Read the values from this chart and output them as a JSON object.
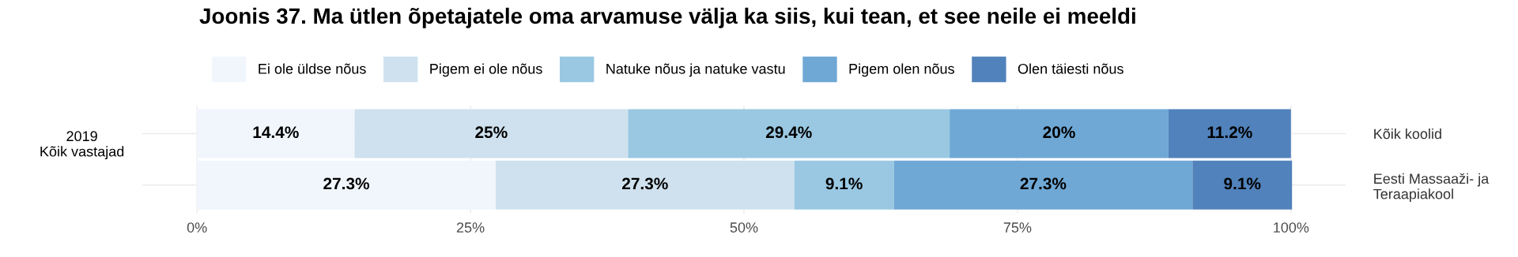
{
  "chart_data": {
    "type": "bar",
    "orientation": "horizontal",
    "stacked": true,
    "title": "Joonis 37. Ma ütlen õpetajatele oma arvamuse välja ka siis, kui tean, et see neile ei meeldi",
    "ylabel": "2019\nKõik vastajad",
    "categories": [
      "Kõik koolid",
      "Eesti Massaaži- ja\nTeraapiakool"
    ],
    "series": [
      {
        "name": "Ei ole üldse nõus",
        "color": "#f1f6fd",
        "values": [
          14.4,
          27.3
        ],
        "value_labels": [
          "14.4%",
          "27.3%"
        ]
      },
      {
        "name": "Pigem ei ole nõus",
        "color": "#cfe1ee",
        "values": [
          25,
          27.3
        ],
        "value_labels": [
          "25%",
          "27.3%"
        ]
      },
      {
        "name": "Natuke nõus ja natuke vastu",
        "color": "#9ac8e2",
        "values": [
          29.4,
          9.1
        ],
        "value_labels": [
          "29.4%",
          "9.1%"
        ]
      },
      {
        "name": "Pigem olen nõus",
        "color": "#6fa8d5",
        "values": [
          20,
          27.3
        ],
        "value_labels": [
          "20%",
          "27.3%"
        ]
      },
      {
        "name": "Olen täiesti nõus",
        "color": "#5182bb",
        "values": [
          11.2,
          9.1
        ],
        "value_labels": [
          "11.2%",
          "9.1%"
        ]
      }
    ],
    "xlim": [
      -5,
      105
    ],
    "xticks": [
      {
        "value": 0,
        "label": "0%"
      },
      {
        "value": 25,
        "label": "25%"
      },
      {
        "value": 50,
        "label": "50%"
      },
      {
        "value": 75,
        "label": "75%"
      },
      {
        "value": 100,
        "label": "100%"
      }
    ],
    "grid": true,
    "legend": "top"
  }
}
